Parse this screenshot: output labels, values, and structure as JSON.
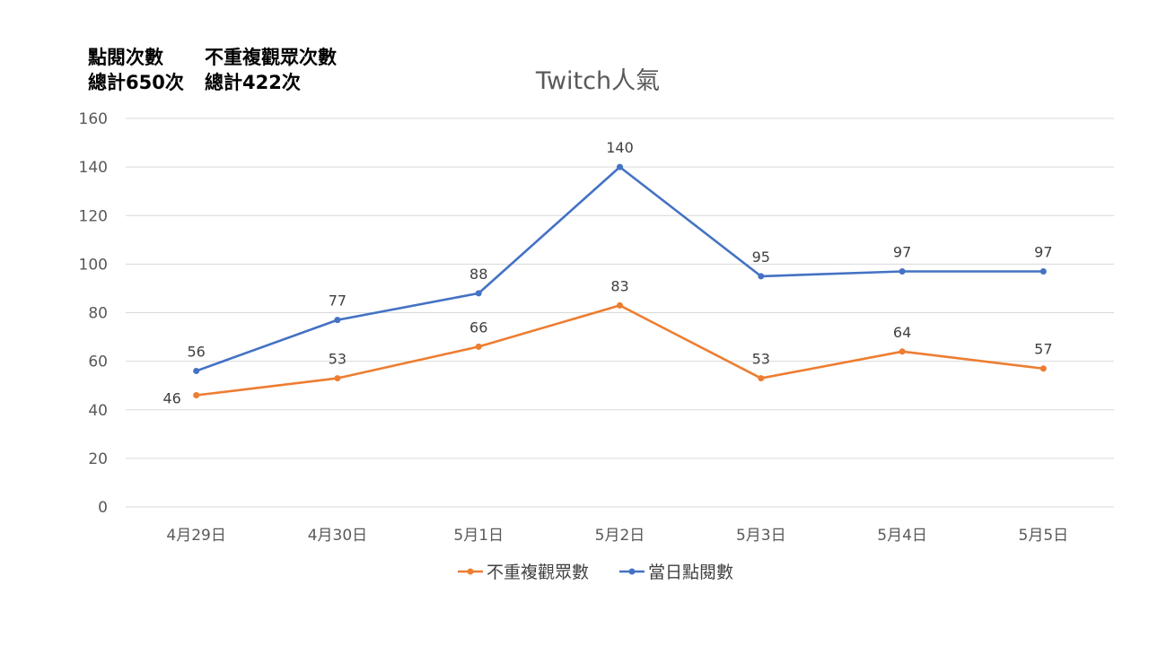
{
  "stats": {
    "col1": {
      "label": "點閱次數",
      "total": "總計650次"
    },
    "col2": {
      "label": "不重複觀眾次數",
      "total": "總計422次"
    }
  },
  "chart_data": {
    "type": "line",
    "title": "Twitch人氣",
    "categories": [
      "4月29日",
      "4月30日",
      "5月1日",
      "5月2日",
      "5月3日",
      "5月4日",
      "5月5日"
    ],
    "ylim": [
      0,
      160
    ],
    "yticks": [
      0,
      20,
      40,
      60,
      80,
      100,
      120,
      140,
      160
    ],
    "grid": true,
    "legend_position": "bottom",
    "series": [
      {
        "name": "不重複觀眾數",
        "color": "#ed7d31",
        "values": [
          46,
          53,
          66,
          83,
          53,
          64,
          57
        ],
        "labels": [
          "46",
          "53",
          "66",
          "83",
          "53",
          "64",
          "57"
        ]
      },
      {
        "name": "當日點閱數",
        "color": "#4472c4",
        "values": [
          56,
          77,
          88,
          140,
          95,
          97,
          97
        ],
        "labels": [
          "56",
          "77",
          "88",
          "140",
          "95",
          "97",
          "97"
        ]
      }
    ]
  }
}
